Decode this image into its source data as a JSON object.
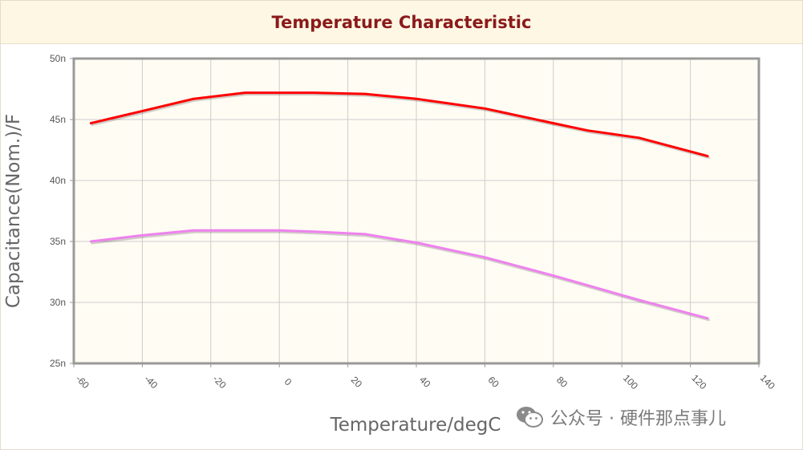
{
  "header": {
    "title": "Temperature Characteristic"
  },
  "watermark": {
    "text": "公众号 · 硬件那点事儿",
    "icon": "wechat-icon"
  },
  "colors": {
    "plot_bg": "#fffcf3",
    "grid": "#cccccc",
    "axis": "#999999",
    "series_red": "#ff0000",
    "series_violet": "#ee82ee"
  },
  "chart_data": {
    "type": "line",
    "title": "",
    "xlabel": "Temperature/degC",
    "ylabel": "Capacitance(Nom.)/F",
    "xlim": [
      -60,
      140
    ],
    "ylim": [
      25,
      50
    ],
    "x_ticks": [
      "-60",
      "-40",
      "-20",
      "0",
      "20",
      "40",
      "60",
      "80",
      "100",
      "120",
      "140"
    ],
    "y_ticks": [
      "25n",
      "30n",
      "35n",
      "40n",
      "45n",
      "50n"
    ],
    "grid": true,
    "series": [
      {
        "color": "#ff0000",
        "x": [
          -55,
          -40,
          -25,
          -10,
          0,
          10,
          25,
          40,
          60,
          80,
          90,
          105,
          125
        ],
        "y": [
          44.7,
          45.7,
          46.7,
          47.2,
          47.2,
          47.2,
          47.1,
          46.7,
          45.9,
          44.7,
          44.1,
          43.5,
          42.0
        ]
      },
      {
        "color": "#ee82ee",
        "x": [
          -55,
          -40,
          -25,
          -10,
          0,
          10,
          25,
          40,
          60,
          80,
          90,
          105,
          125
        ],
        "y": [
          35.0,
          35.5,
          35.9,
          35.9,
          35.9,
          35.8,
          35.6,
          34.9,
          33.7,
          32.2,
          31.4,
          30.2,
          28.7
        ]
      }
    ]
  }
}
